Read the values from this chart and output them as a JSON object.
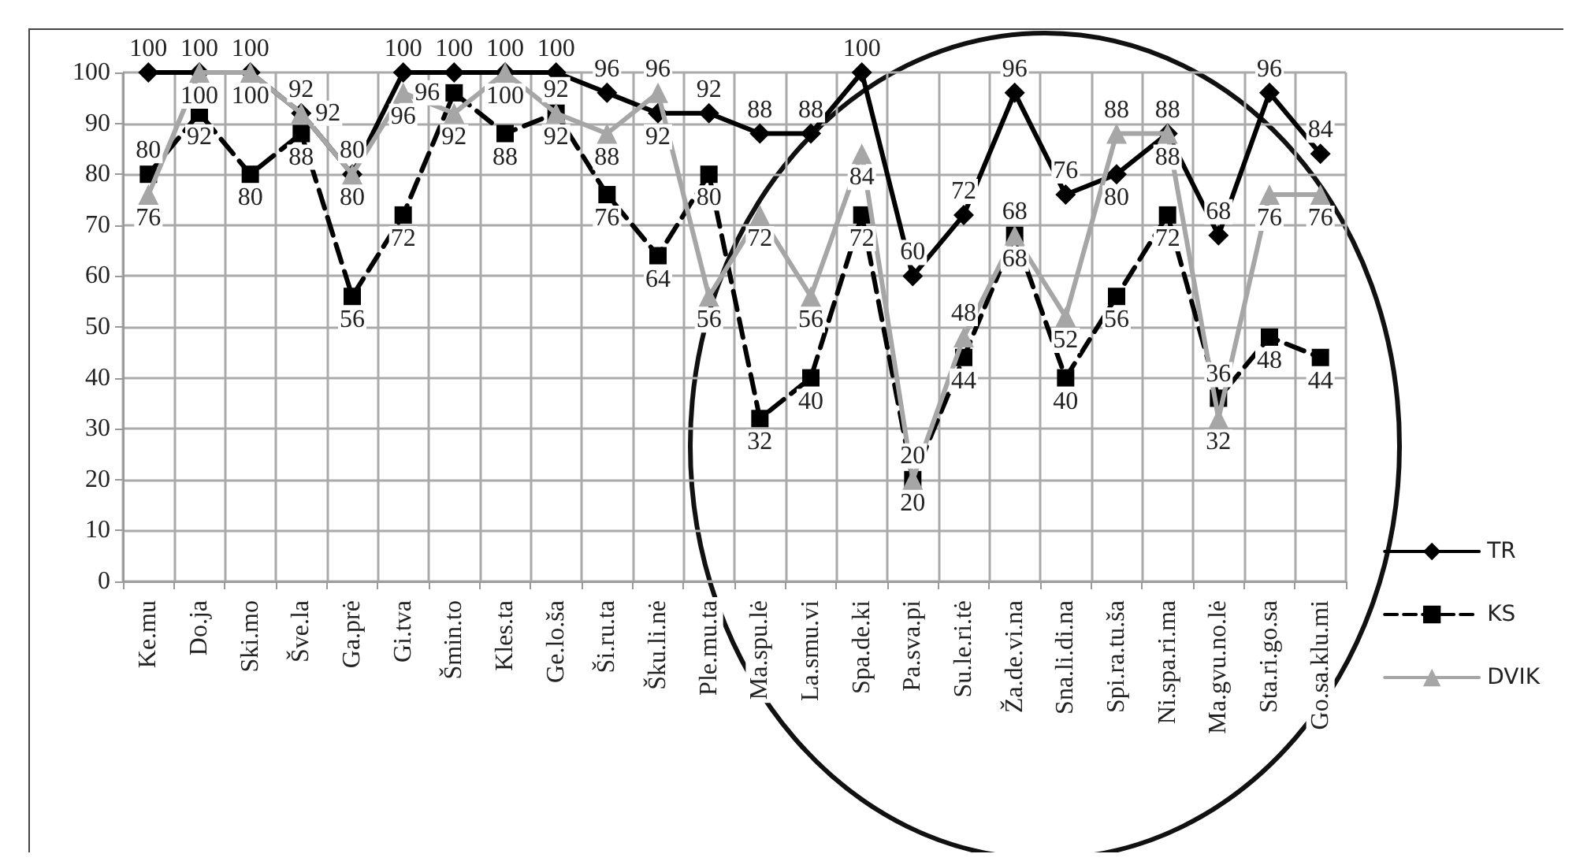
{
  "chart_data": {
    "type": "line",
    "categories": [
      "Ke.mu",
      "Do.ja",
      "Ski.mo",
      "Šve.la",
      "Ga.prė",
      "Gi.tva",
      "Šmin.to",
      "Kles.ta",
      "Ge.lo.ša",
      "Ši.ru.ta",
      "Šku.li.nė",
      "Ple.mu.ta",
      "Ma.spu.lė",
      "La.smu.vi",
      "Spa.de.ki",
      "Pa.sva.pi",
      "Su.le.ri.tė",
      "Ža.de.vi.na",
      "Sna.li.di.na",
      "Spi.ra.tu.ša",
      "Ni.spa.ri.ma",
      "Ma.gvu.no.lė",
      "Sta.ri.go.sa",
      "Go.sa.klu.mi"
    ],
    "series": [
      {
        "name": "TR",
        "color": "#000000",
        "marker": "diamond",
        "line_style": "solid",
        "values": [
          100,
          100,
          100,
          92,
          80,
          100,
          100,
          100,
          100,
          96,
          92,
          92,
          88,
          88,
          100,
          60,
          72,
          96,
          76,
          80,
          88,
          68,
          96,
          84
        ]
      },
      {
        "name": "KS",
        "color": "#000000",
        "marker": "square",
        "line_style": "dashed",
        "values": [
          80,
          92,
          80,
          88,
          56,
          72,
          96,
          88,
          92,
          76,
          64,
          80,
          32,
          40,
          72,
          20,
          44,
          68,
          40,
          56,
          72,
          36,
          48,
          44
        ]
      },
      {
        "name": "DVIK",
        "color": "#a6a6a6",
        "marker": "triangle",
        "line_style": "solid",
        "values": [
          76,
          100,
          100,
          92,
          80,
          96,
          92,
          100,
          92,
          88,
          96,
          56,
          72,
          56,
          84,
          20,
          48,
          68,
          52,
          88,
          88,
          32,
          76,
          76
        ]
      }
    ],
    "ylim": [
      0,
      100
    ],
    "yticks": [
      0,
      10,
      20,
      30,
      40,
      50,
      60,
      70,
      80,
      90,
      100
    ],
    "grid": true,
    "legend": "right",
    "data_labels": true
  }
}
